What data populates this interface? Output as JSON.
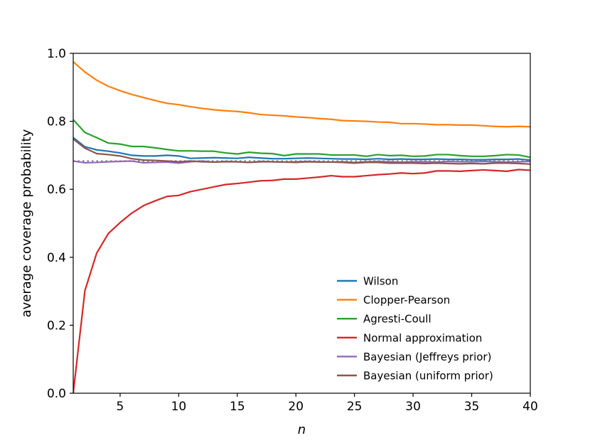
{
  "chart_data": {
    "type": "line",
    "title": "",
    "xlabel": "n",
    "ylabel": "average coverage probability",
    "xlim": [
      1,
      40
    ],
    "ylim": [
      0.0,
      1.0
    ],
    "xticks": [
      5,
      10,
      15,
      20,
      25,
      30,
      35,
      40
    ],
    "yticks": [
      0.0,
      0.2,
      0.4,
      0.6,
      0.8,
      1.0
    ],
    "xtick_labels": [
      "5",
      "10",
      "15",
      "20",
      "25",
      "30",
      "35",
      "40"
    ],
    "ytick_labels": [
      "0.0",
      "0.2",
      "0.4",
      "0.6",
      "0.8",
      "1.0"
    ],
    "legend_position": "lower-right",
    "reference_line": {
      "name": "nominal 0.683",
      "value": 0.683,
      "style": "dotted",
      "color": "#888888"
    },
    "x": [
      1,
      2,
      3,
      4,
      5,
      6,
      7,
      8,
      9,
      10,
      11,
      12,
      13,
      14,
      15,
      16,
      17,
      18,
      19,
      20,
      21,
      22,
      23,
      24,
      25,
      26,
      27,
      28,
      29,
      30,
      31,
      32,
      33,
      34,
      35,
      36,
      37,
      38,
      39,
      40
    ],
    "series": [
      {
        "name": "Wilson",
        "color": "#1f77b4",
        "values": [
          0.752,
          0.725,
          0.716,
          0.712,
          0.707,
          0.7,
          0.698,
          0.698,
          0.7,
          0.698,
          0.691,
          0.692,
          0.693,
          0.692,
          0.691,
          0.694,
          0.692,
          0.69,
          0.69,
          0.691,
          0.692,
          0.691,
          0.69,
          0.689,
          0.689,
          0.688,
          0.69,
          0.688,
          0.689,
          0.688,
          0.688,
          0.689,
          0.688,
          0.688,
          0.687,
          0.687,
          0.688,
          0.688,
          0.689,
          0.686
        ]
      },
      {
        "name": "Clopper-Pearson",
        "color": "#ff7f0e",
        "values": [
          0.975,
          0.945,
          0.921,
          0.903,
          0.89,
          0.879,
          0.87,
          0.861,
          0.853,
          0.849,
          0.843,
          0.838,
          0.834,
          0.831,
          0.829,
          0.825,
          0.82,
          0.818,
          0.816,
          0.813,
          0.811,
          0.808,
          0.806,
          0.802,
          0.801,
          0.8,
          0.798,
          0.797,
          0.793,
          0.793,
          0.792,
          0.79,
          0.79,
          0.789,
          0.789,
          0.787,
          0.785,
          0.784,
          0.785,
          0.784
        ]
      },
      {
        "name": "Agresti-Coull",
        "color": "#2ca02c",
        "values": [
          0.805,
          0.767,
          0.752,
          0.736,
          0.733,
          0.726,
          0.726,
          0.722,
          0.717,
          0.713,
          0.713,
          0.712,
          0.712,
          0.707,
          0.704,
          0.709,
          0.706,
          0.705,
          0.699,
          0.704,
          0.704,
          0.704,
          0.701,
          0.701,
          0.701,
          0.697,
          0.702,
          0.699,
          0.7,
          0.697,
          0.698,
          0.702,
          0.702,
          0.699,
          0.697,
          0.697,
          0.699,
          0.702,
          0.701,
          0.694
        ]
      },
      {
        "name": "Normal approximation",
        "color": "#d62728",
        "values": [
          0.0,
          0.302,
          0.412,
          0.47,
          0.502,
          0.53,
          0.552,
          0.566,
          0.579,
          0.582,
          0.593,
          0.6,
          0.607,
          0.614,
          0.617,
          0.621,
          0.625,
          0.626,
          0.63,
          0.63,
          0.633,
          0.636,
          0.64,
          0.637,
          0.637,
          0.64,
          0.643,
          0.645,
          0.648,
          0.646,
          0.648,
          0.654,
          0.654,
          0.653,
          0.655,
          0.657,
          0.655,
          0.653,
          0.658,
          0.656
        ]
      },
      {
        "name": "Bayesian (Jeffreys prior)",
        "color": "#9467bd",
        "values": [
          0.683,
          0.678,
          0.679,
          0.681,
          0.682,
          0.683,
          0.678,
          0.679,
          0.68,
          0.677,
          0.681,
          0.683,
          0.68,
          0.682,
          0.681,
          0.679,
          0.682,
          0.681,
          0.68,
          0.681,
          0.682,
          0.681,
          0.68,
          0.681,
          0.679,
          0.681,
          0.682,
          0.681,
          0.68,
          0.681,
          0.681,
          0.68,
          0.682,
          0.681,
          0.681,
          0.682,
          0.681,
          0.68,
          0.681,
          0.682
        ]
      },
      {
        "name": "Bayesian (uniform prior)",
        "color": "#8c564b",
        "values": [
          0.748,
          0.721,
          0.705,
          0.702,
          0.698,
          0.69,
          0.686,
          0.685,
          0.683,
          0.681,
          0.683,
          0.681,
          0.68,
          0.681,
          0.681,
          0.679,
          0.681,
          0.681,
          0.68,
          0.679,
          0.681,
          0.68,
          0.68,
          0.679,
          0.677,
          0.679,
          0.679,
          0.677,
          0.677,
          0.677,
          0.676,
          0.677,
          0.676,
          0.675,
          0.676,
          0.675,
          0.677,
          0.677,
          0.676,
          0.674
        ]
      }
    ]
  }
}
